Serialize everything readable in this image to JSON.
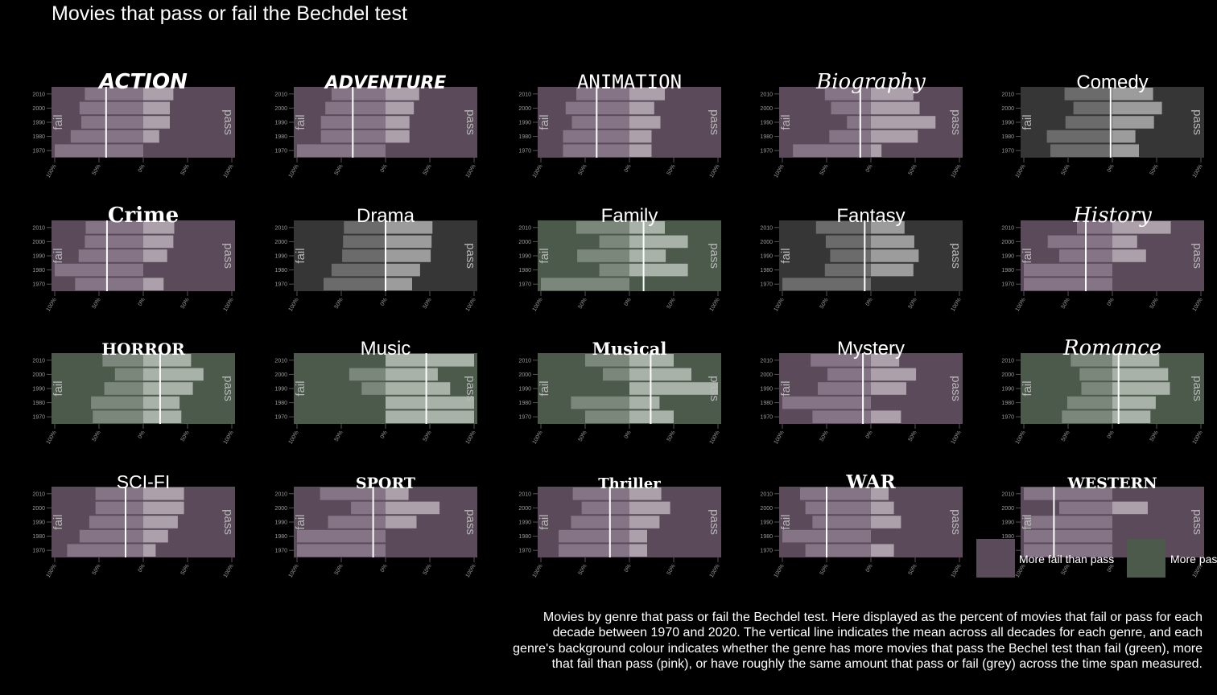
{
  "title": "Movies that pass or fail the Bechdel test",
  "caption": "Movies by genre that pass or fail the Bechdel test. Here displayed as the percent of movies that fail or pass for each decade between 1970 and 2020. The vertical line indicates the mean across all decades for each genre, and each genre's background colour indicates whether the genre has more movies that pass the Bechel test than fail (green), more that fail than pass (pink), or have roughly the same amount that pass or fail (grey) across the time span measured.",
  "legend": [
    {
      "label": "More fail than pass",
      "color": "#5a4a5a"
    },
    {
      "label": "More pass than fail",
      "color": "#4b5a4b"
    }
  ],
  "colors": {
    "pink": "#5a4a5a",
    "green": "#4b5a4b",
    "grey": "#363636"
  },
  "chart_data": {
    "type": "bar",
    "orientation": "horizontal-diverging",
    "categories": [
      "1970",
      "1980",
      "1990",
      "2000",
      "2010"
    ],
    "x_ticks": [
      "100%",
      "50%",
      "0%",
      "50%",
      "100%"
    ],
    "xlim": [
      -100,
      100
    ],
    "left_label": "fail",
    "right_label": "pass",
    "panels": [
      {
        "genre": "ACTION",
        "bg": "pink",
        "mean": -42,
        "fail": [
          100,
          82,
          70,
          72,
          66
        ],
        "pass": [
          0,
          18,
          30,
          30,
          34
        ]
      },
      {
        "genre": "ADVENTURE",
        "bg": "pink",
        "mean": -37,
        "fail": [
          100,
          73,
          73,
          68,
          61
        ],
        "pass": [
          0,
          27,
          27,
          32,
          38
        ]
      },
      {
        "genre": "ANIMATION",
        "bg": "pink",
        "mean": -37,
        "fail": [
          75,
          75,
          65,
          72,
          60
        ],
        "pass": [
          25,
          25,
          35,
          28,
          40
        ]
      },
      {
        "genre": "Biography",
        "bg": "pink",
        "mean": -12,
        "fail": [
          88,
          47,
          27,
          45,
          52
        ],
        "pass": [
          12,
          53,
          73,
          55,
          48
        ]
      },
      {
        "genre": "Comedy",
        "bg": "grey",
        "mean": -2,
        "fail": [
          70,
          74,
          53,
          44,
          54
        ],
        "pass": [
          30,
          26,
          47,
          56,
          46
        ]
      },
      {
        "genre": "Crime",
        "bg": "pink",
        "mean": -41,
        "fail": [
          77,
          100,
          73,
          66,
          65
        ],
        "pass": [
          23,
          0,
          27,
          34,
          35
        ]
      },
      {
        "genre": "Drama",
        "bg": "grey",
        "mean": 0,
        "fail": [
          70,
          61,
          49,
          48,
          47
        ],
        "pass": [
          30,
          39,
          51,
          52,
          53
        ]
      },
      {
        "genre": "Family",
        "bg": "green",
        "mean": 16,
        "fail": [
          100,
          34,
          59,
          34,
          60
        ],
        "pass": [
          0,
          66,
          41,
          66,
          40
        ]
      },
      {
        "genre": "Fantasy",
        "bg": "grey",
        "mean": -7,
        "fail": [
          100,
          52,
          46,
          51,
          62
        ],
        "pass": [
          0,
          48,
          54,
          49,
          38
        ]
      },
      {
        "genre": "History",
        "bg": "pink",
        "mean": -30,
        "fail": [
          100,
          100,
          60,
          73,
          40
        ],
        "pass": [
          0,
          0,
          38,
          28,
          66
        ]
      },
      {
        "genre": "HORROR",
        "bg": "green",
        "mean": 19,
        "fail": [
          57,
          59,
          44,
          32,
          46
        ],
        "pass": [
          43,
          41,
          56,
          68,
          54
        ]
      },
      {
        "genre": "Music",
        "bg": "green",
        "mean": 46,
        "fail": [
          0,
          0,
          27,
          41,
          0
        ],
        "pass": [
          100,
          100,
          73,
          59,
          100
        ]
      },
      {
        "genre": "Musical",
        "bg": "green",
        "mean": 24,
        "fail": [
          50,
          66,
          0,
          30,
          50
        ],
        "pass": [
          50,
          34,
          100,
          70,
          50
        ]
      },
      {
        "genre": "Mystery",
        "bg": "pink",
        "mean": -9,
        "fail": [
          66,
          100,
          60,
          49,
          68
        ],
        "pass": [
          34,
          0,
          40,
          51,
          32
        ]
      },
      {
        "genre": "Romance",
        "bg": "green",
        "mean": 7,
        "fail": [
          57,
          51,
          35,
          37,
          47
        ],
        "pass": [
          43,
          49,
          65,
          63,
          53
        ]
      },
      {
        "genre": "SCI-FI",
        "bg": "pink",
        "mean": -20,
        "fail": [
          86,
          72,
          61,
          54,
          54
        ],
        "pass": [
          14,
          28,
          39,
          46,
          46
        ]
      },
      {
        "genre": "SPORT",
        "bg": "pink",
        "mean": -14,
        "fail": [
          100,
          100,
          65,
          39,
          74
        ],
        "pass": [
          0,
          0,
          35,
          61,
          26
        ]
      },
      {
        "genre": "Thriller",
        "bg": "pink",
        "mean": -22,
        "fail": [
          80,
          80,
          66,
          54,
          64
        ],
        "pass": [
          20,
          20,
          34,
          46,
          36
        ]
      },
      {
        "genre": "WAR",
        "bg": "pink",
        "mean": -50,
        "fail": [
          74,
          100,
          66,
          74,
          80
        ],
        "pass": [
          26,
          0,
          34,
          26,
          20
        ]
      },
      {
        "genre": "WESTERN",
        "bg": "pink",
        "mean": -66,
        "fail": [
          100,
          100,
          100,
          60,
          100
        ],
        "pass": [
          0,
          0,
          0,
          40,
          0
        ]
      }
    ]
  }
}
